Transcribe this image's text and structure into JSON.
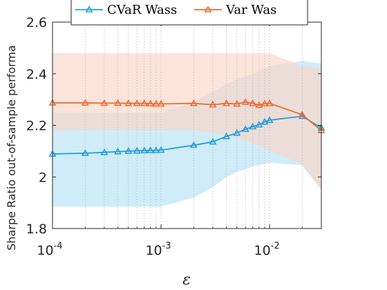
{
  "chart_data": {
    "type": "line",
    "xscale": "log",
    "xlim": [
      0.0001,
      0.03
    ],
    "ylim": [
      1.8,
      2.6
    ],
    "grid": "x-minor-dotted",
    "xlabel": "ε",
    "ylabel": "Sharpe Ratio out-of-sample performa",
    "x_ticks": [
      {
        "value": 0.0001,
        "base": "10",
        "exp": "-4"
      },
      {
        "value": 0.001,
        "base": "10",
        "exp": "-3"
      },
      {
        "value": 0.01,
        "base": "10",
        "exp": "-2"
      }
    ],
    "y_ticks": [
      {
        "value": 1.8,
        "label": "1.8"
      },
      {
        "value": 2.0,
        "label": "2"
      },
      {
        "value": 2.2,
        "label": "2.2"
      },
      {
        "value": 2.4,
        "label": "2.4"
      },
      {
        "value": 2.6,
        "label": "2.6"
      }
    ],
    "legend_position": "top",
    "x": [
      0.0001,
      0.0002,
      0.0003,
      0.0004,
      0.0005,
      0.0006,
      0.0007,
      0.0008,
      0.0009,
      0.001,
      0.002,
      0.003,
      0.004,
      0.005,
      0.006,
      0.007,
      0.008,
      0.009,
      0.01,
      0.02,
      0.03
    ],
    "series": [
      {
        "name": "CVaR Wass",
        "color": "#1f9fd6",
        "band_color": "#bfe5f6",
        "marker": "triangle",
        "values": [
          2.089,
          2.092,
          2.095,
          2.098,
          2.1,
          2.101,
          2.102,
          2.103,
          2.103,
          2.104,
          2.123,
          2.136,
          2.157,
          2.17,
          2.185,
          2.195,
          2.202,
          2.213,
          2.22,
          2.235,
          2.19
        ],
        "band_upper": [
          2.25,
          2.25,
          2.25,
          2.25,
          2.25,
          2.25,
          2.25,
          2.25,
          2.25,
          2.25,
          2.29,
          2.33,
          2.36,
          2.38,
          2.39,
          2.4,
          2.41,
          2.42,
          2.43,
          2.45,
          2.44
        ],
        "band_lower": [
          1.885,
          1.885,
          1.885,
          1.885,
          1.885,
          1.885,
          1.885,
          1.885,
          1.885,
          1.885,
          1.92,
          1.96,
          2.0,
          2.02,
          2.03,
          2.04,
          2.045,
          2.05,
          2.055,
          2.045,
          1.95
        ]
      },
      {
        "name": "Var Was",
        "color": "#f06a2c",
        "band_color": "#fcd6c8",
        "marker": "triangle",
        "values": [
          2.287,
          2.287,
          2.286,
          2.286,
          2.285,
          2.285,
          2.285,
          2.284,
          2.283,
          2.283,
          2.285,
          2.28,
          2.285,
          2.283,
          2.29,
          2.285,
          2.278,
          2.284,
          2.285,
          2.241,
          2.18
        ],
        "band_upper": [
          2.48,
          2.48,
          2.48,
          2.48,
          2.48,
          2.48,
          2.48,
          2.48,
          2.48,
          2.48,
          2.48,
          2.48,
          2.48,
          2.48,
          2.48,
          2.48,
          2.48,
          2.48,
          2.48,
          2.43,
          2.42
        ],
        "band_lower": [
          2.18,
          2.18,
          2.18,
          2.18,
          2.18,
          2.18,
          2.18,
          2.18,
          2.18,
          2.18,
          2.18,
          2.17,
          2.16,
          2.15,
          2.14,
          2.13,
          2.12,
          2.11,
          2.1,
          2.05,
          1.95
        ]
      }
    ]
  }
}
